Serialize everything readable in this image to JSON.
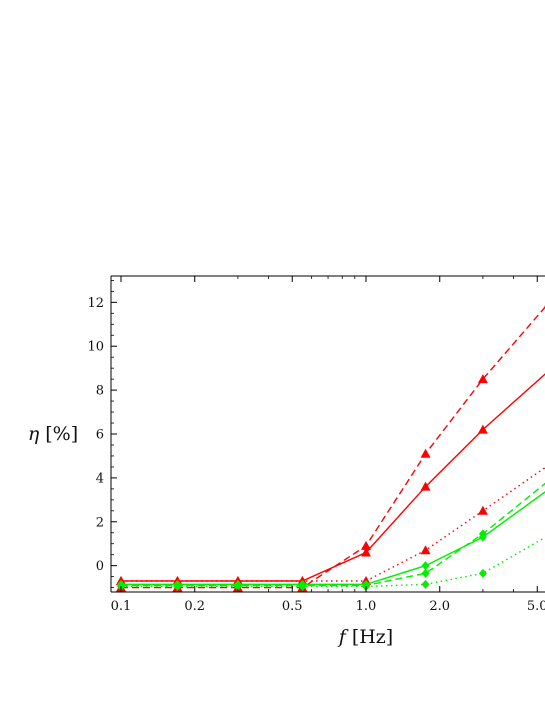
{
  "chart_data": {
    "type": "line",
    "xlabel_var": "f",
    "xlabel_unit": "[Hz]",
    "ylabel_var": "η",
    "ylabel_unit": "[%]",
    "x_scale": "log",
    "xlim": [
      0.09,
      5.0
    ],
    "ylim": [
      -1.2,
      13.2
    ],
    "x_ticks": [
      {
        "value": 0.1,
        "label": "0.1"
      },
      {
        "value": 0.2,
        "label": "0.2"
      },
      {
        "value": 0.5,
        "label": "0.5"
      },
      {
        "value": 1.0,
        "label": "1.0"
      },
      {
        "value": 2.0,
        "label": "2.0"
      },
      {
        "value": 5.0,
        "label": "5.0"
      }
    ],
    "y_ticks": [
      {
        "value": 0,
        "label": "0"
      },
      {
        "value": 2,
        "label": "2"
      },
      {
        "value": 4,
        "label": "4"
      },
      {
        "value": 6,
        "label": "6"
      },
      {
        "value": 8,
        "label": "8"
      },
      {
        "value": 10,
        "label": "10"
      },
      {
        "value": 12,
        "label": "12"
      }
    ],
    "grid": false,
    "legend": "none",
    "series": [
      {
        "color": "#ff0000",
        "dash": "solid",
        "marker": "triangle",
        "x": [
          0.1,
          0.17,
          0.3,
          0.55,
          1.0,
          1.75,
          3.0,
          5.6
        ],
        "y": [
          -0.7,
          -0.7,
          -0.7,
          -0.7,
          0.6,
          3.6,
          6.2,
          8.9
        ]
      },
      {
        "color": "#ff0000",
        "dash": "dashed",
        "marker": "triangle",
        "x": [
          0.1,
          0.17,
          0.3,
          0.55,
          1.0,
          1.75,
          3.0,
          5.6
        ],
        "y": [
          -1.0,
          -1.0,
          -1.0,
          -1.0,
          0.9,
          5.1,
          8.5,
          12.0
        ]
      },
      {
        "color": "#ff0000",
        "dash": "dotted",
        "marker": "triangle",
        "x": [
          0.1,
          0.17,
          0.3,
          0.55,
          1.0,
          1.75,
          3.0,
          5.6
        ],
        "y": [
          -0.7,
          -0.7,
          -0.7,
          -0.7,
          -0.7,
          0.7,
          2.5,
          4.6
        ]
      },
      {
        "color": "#00ee00",
        "dash": "solid",
        "marker": "diamond",
        "x": [
          0.1,
          0.17,
          0.3,
          0.55,
          1.0,
          1.75,
          3.0,
          5.6
        ],
        "y": [
          -0.85,
          -0.85,
          -0.85,
          -0.85,
          -0.85,
          0.0,
          1.3,
          3.5
        ]
      },
      {
        "color": "#00ee00",
        "dash": "dashed",
        "marker": "diamond",
        "x": [
          0.1,
          0.17,
          0.3,
          0.55,
          1.0,
          1.75,
          3.0,
          5.6
        ],
        "y": [
          -0.9,
          -0.9,
          -0.9,
          -0.9,
          -0.9,
          -0.35,
          1.45,
          3.9
        ]
      },
      {
        "color": "#00ee00",
        "dash": "dotted",
        "marker": "diamond",
        "x": [
          0.1,
          0.17,
          0.3,
          0.55,
          1.0,
          1.75,
          3.0,
          5.6
        ],
        "y": [
          -0.95,
          -0.95,
          -0.95,
          -0.95,
          -0.95,
          -0.85,
          -0.35,
          1.4
        ]
      }
    ]
  }
}
